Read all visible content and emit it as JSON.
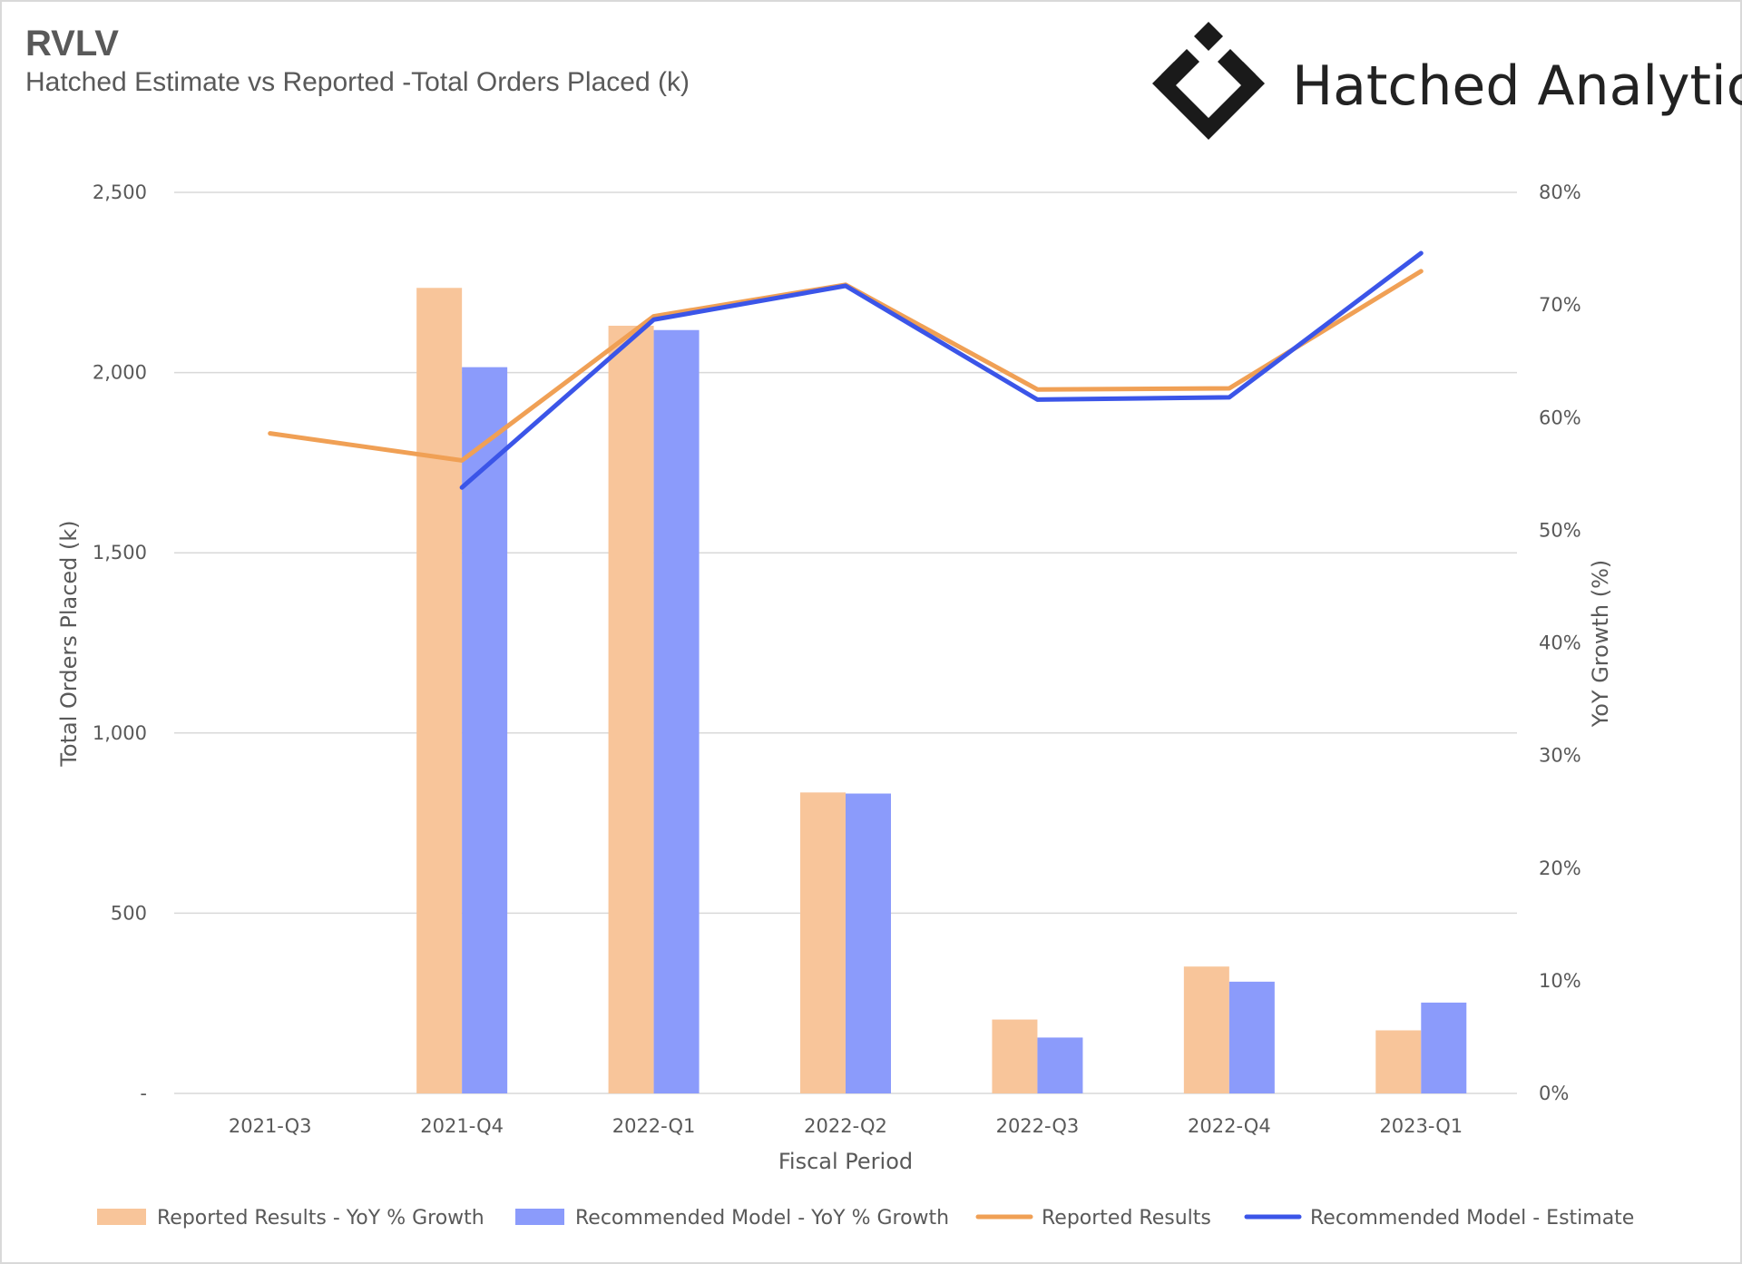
{
  "header": {
    "title": "RVLV",
    "subtitle": "Hatched Estimate vs Reported -Total Orders Placed (k)"
  },
  "logo": {
    "text": "Hatched Analytics",
    "icon": "hatched-diamond-icon",
    "color": "#1a1a1a"
  },
  "chart_data": {
    "type": "bar",
    "categories": [
      "2021-Q3",
      "2021-Q4",
      "2022-Q1",
      "2022-Q2",
      "2022-Q3",
      "2022-Q4",
      "2023-Q1"
    ],
    "xlabel": "Fiscal Period",
    "ylabel": "Total Orders Placed (k)",
    "y2label": "YoY Growth (%)",
    "ylim": [
      0,
      2500
    ],
    "y2lim": [
      0,
      80
    ],
    "y_ticks": [
      "-",
      "500",
      "1,000",
      "1,500",
      "2,000",
      "2,500"
    ],
    "y2_ticks": [
      "0%",
      "10%",
      "20%",
      "30%",
      "40%",
      "50%",
      "60%",
      "70%",
      "80%"
    ],
    "grid": true,
    "legend_position": "bottom",
    "bar_series": [
      {
        "name": "Reported Results - YoY % Growth",
        "color": "#f8c59a",
        "values": [
          null,
          2235,
          2130,
          835,
          205,
          352,
          175
        ]
      },
      {
        "name": "Recommended Model - YoY % Growth",
        "color": "#8b9bfb",
        "values": [
          null,
          2015,
          2118,
          832,
          155,
          310,
          252
        ]
      }
    ],
    "line_series": [
      {
        "name": "Reported Results",
        "color": "#f0a055",
        "axis": "y2",
        "values": [
          58.6,
          56.2,
          69.0,
          71.8,
          62.5,
          62.6,
          73.0
        ]
      },
      {
        "name": "Recommended Model - Estimate",
        "color": "#3b55e8",
        "axis": "y2",
        "values": [
          null,
          53.8,
          68.7,
          71.7,
          61.6,
          61.8,
          74.6
        ]
      }
    ]
  }
}
